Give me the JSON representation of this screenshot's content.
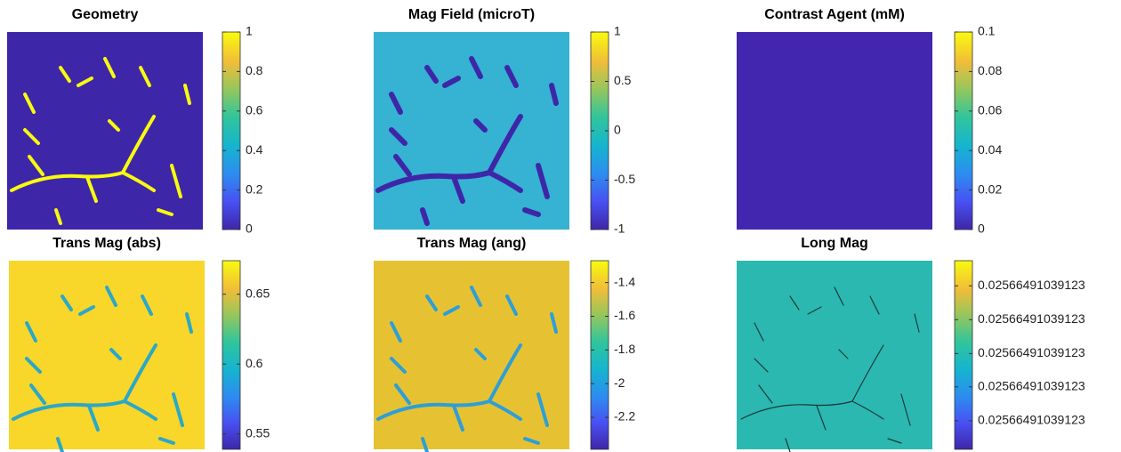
{
  "chart_data": [
    {
      "type": "heatmap",
      "title": "Geometry",
      "clim": [
        0,
        1
      ],
      "cticks": [
        0,
        0.2,
        0.4,
        0.6,
        0.8,
        1
      ]
    },
    {
      "type": "heatmap",
      "title": "Mag Field (microT)",
      "clim": [
        -1,
        1
      ],
      "cticks": [
        -1,
        -0.5,
        0,
        0.5,
        1
      ]
    },
    {
      "type": "heatmap",
      "title": "Contrast Agent (mM)",
      "clim": [
        0,
        0.1
      ],
      "cticks": [
        0,
        0.02,
        0.04,
        0.06,
        0.08,
        0.1
      ]
    },
    {
      "type": "heatmap",
      "title": "Trans Mag (abs)",
      "clim": [
        0.539,
        0.674
      ],
      "cticks": [
        0.55,
        0.6,
        0.65
      ]
    },
    {
      "type": "heatmap",
      "title": "Trans Mag (ang)",
      "clim": [
        -2.39,
        -1.27
      ],
      "cticks": [
        -2.2,
        -2,
        -1.8,
        -1.6,
        -1.4
      ]
    },
    {
      "type": "heatmap",
      "title": "Long Mag",
      "clim": [
        0.02566491039122943,
        0.02566491039123055
      ],
      "cticks": [
        {
          "value": 0.0256649103912296,
          "label": "0.02566491039123"
        },
        {
          "value": 0.0256649103912298,
          "label": "0.02566491039123"
        },
        {
          "value": 0.02566491039123,
          "label": "0.02566491039123"
        },
        {
          "value": 0.0256649103912302,
          "label": "0.02566491039123"
        },
        {
          "value": 0.0256649103912304,
          "label": "0.02566491039123"
        }
      ]
    }
  ]
}
